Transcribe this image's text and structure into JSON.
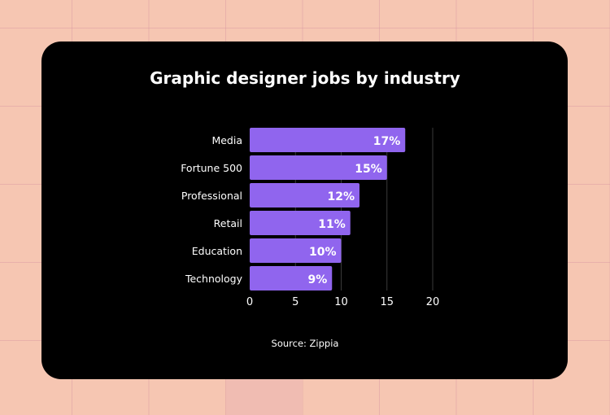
{
  "chart_data": {
    "type": "bar",
    "orientation": "horizontal",
    "title": "Graphic designer jobs by industry",
    "categories": [
      "Media",
      "Fortune 500",
      "Professional",
      "Retail",
      "Education",
      "Technology"
    ],
    "values": [
      17,
      15,
      12,
      11,
      10,
      9
    ],
    "data_labels": [
      "17%",
      "15%",
      "12%",
      "11%",
      "10%",
      "9%"
    ],
    "xlim": [
      0,
      20
    ],
    "xticks": [
      "0",
      "5",
      "10",
      "15",
      "20"
    ],
    "grid": "vertical",
    "bar_color": "#9065ee",
    "source": "Source: Zippia"
  },
  "colors": {
    "background": "#f6c6b2",
    "card": "#000000"
  }
}
